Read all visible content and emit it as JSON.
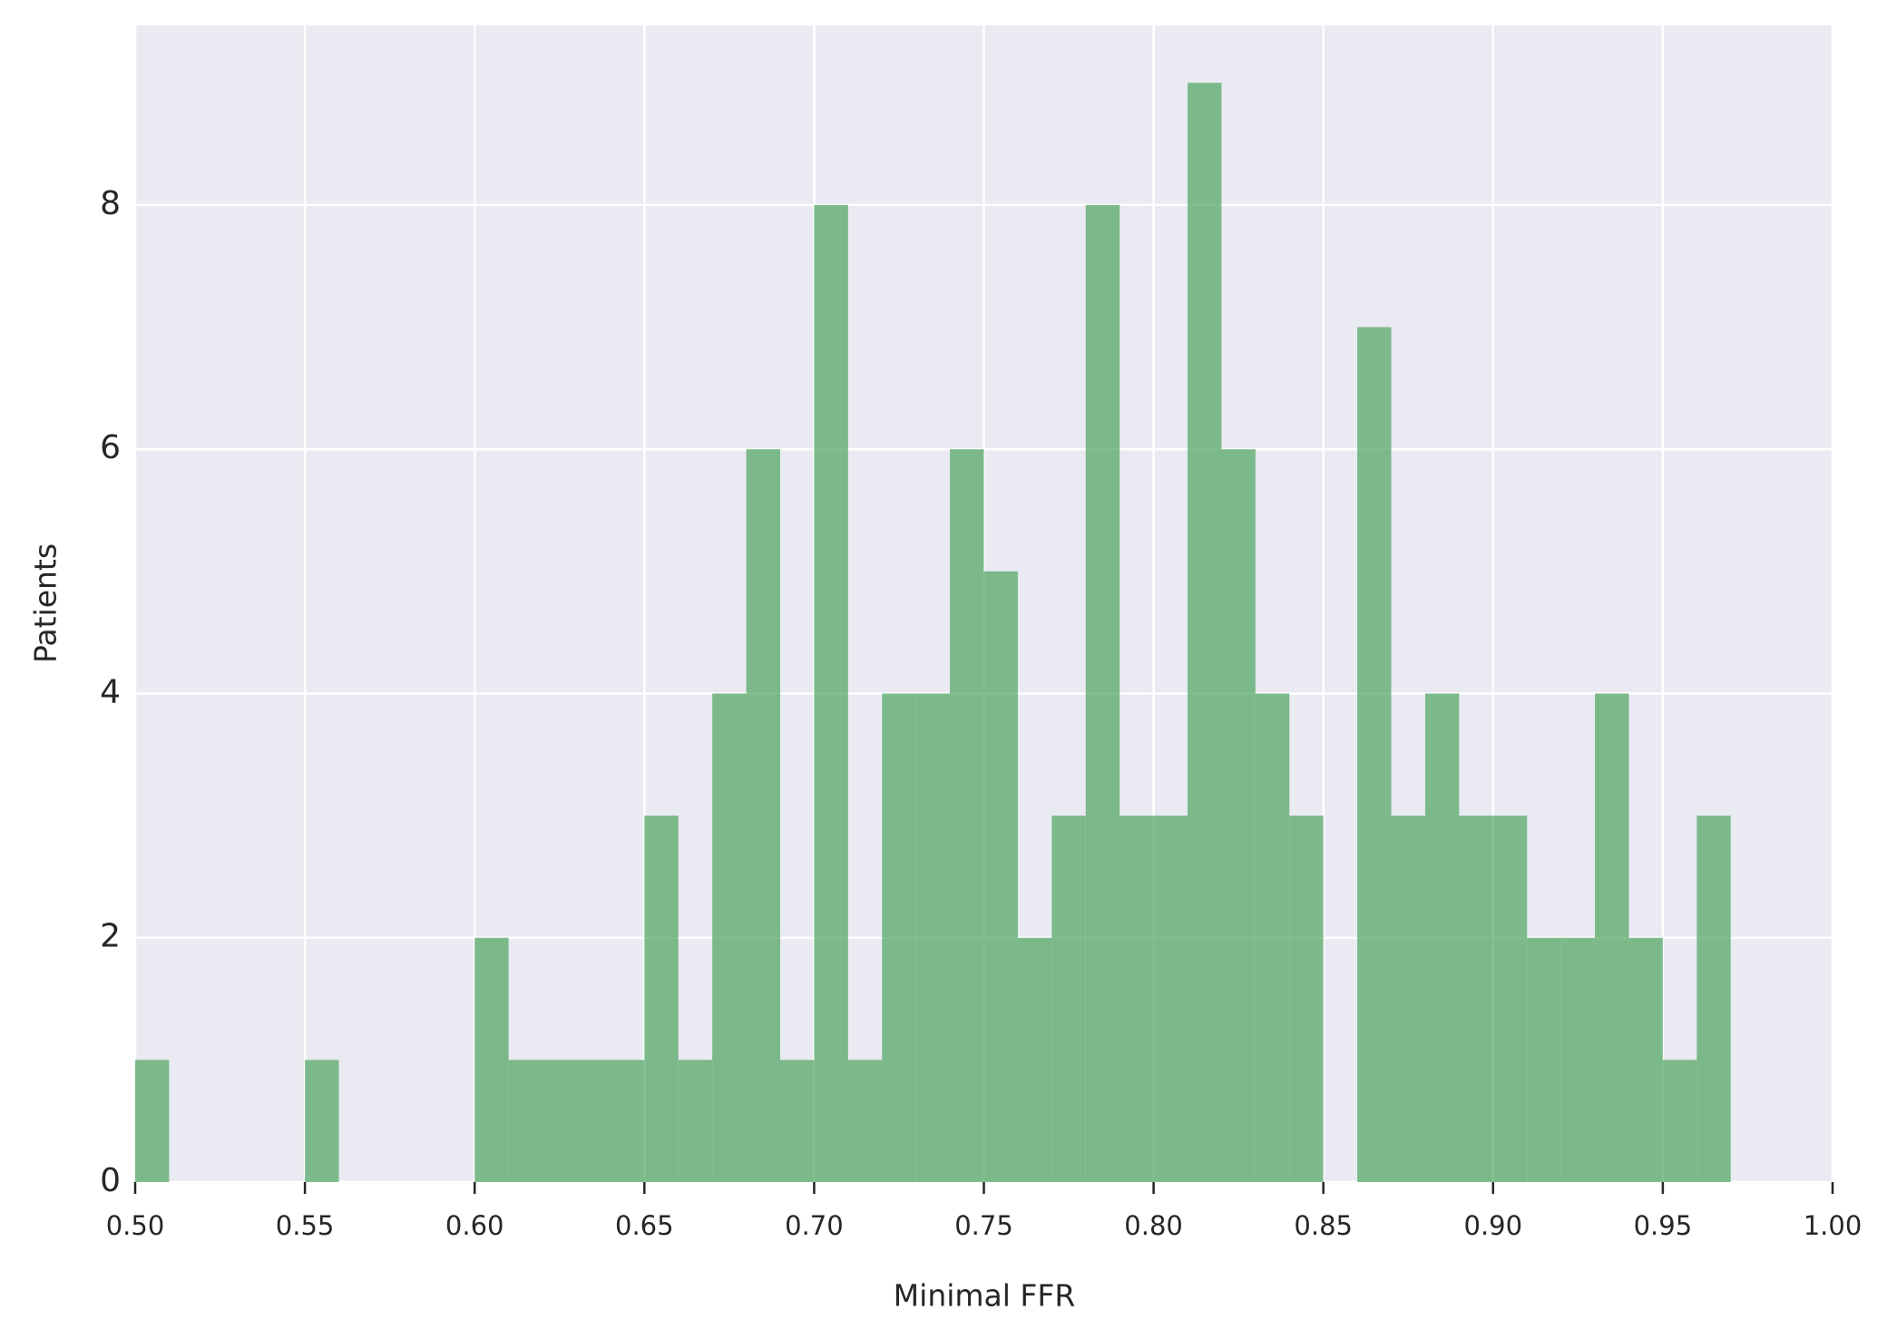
{
  "chart_data": {
    "type": "histogram",
    "xlabel": "Minimal FFR",
    "ylabel": "Patients",
    "bins": [
      0.5,
      0.51,
      0.52,
      0.53,
      0.54,
      0.55,
      0.56,
      0.57,
      0.58,
      0.59,
      0.6,
      0.61,
      0.62,
      0.63,
      0.64,
      0.65,
      0.66,
      0.67,
      0.68,
      0.69,
      0.7,
      0.71,
      0.72,
      0.73,
      0.74,
      0.75,
      0.76,
      0.77,
      0.78,
      0.79,
      0.8,
      0.81,
      0.82,
      0.83,
      0.84,
      0.85,
      0.86,
      0.87,
      0.88,
      0.89,
      0.9,
      0.91,
      0.92,
      0.93,
      0.94,
      0.95,
      0.96,
      0.97
    ],
    "counts": [
      1,
      0,
      0,
      0,
      0,
      1,
      0,
      0,
      0,
      0,
      2,
      1,
      1,
      1,
      1,
      3,
      1,
      4,
      6,
      1,
      8,
      1,
      4,
      4,
      6,
      5,
      2,
      3,
      8,
      3,
      3,
      9,
      6,
      4,
      3,
      0,
      7,
      3,
      4,
      3,
      3,
      2,
      2,
      4,
      2,
      1,
      3
    ],
    "color": "#55a868",
    "xlim": [
      0.5,
      1.0
    ],
    "xticks": [
      {
        "value": 0.5,
        "label": "0.50"
      },
      {
        "value": 0.55,
        "label": "0.55"
      },
      {
        "value": 0.6,
        "label": "0.60"
      },
      {
        "value": 0.65,
        "label": "0.65"
      },
      {
        "value": 0.7,
        "label": "0.70"
      },
      {
        "value": 0.75,
        "label": "0.75"
      },
      {
        "value": 0.8,
        "label": "0.80"
      },
      {
        "value": 0.85,
        "label": "0.85"
      },
      {
        "value": 0.9,
        "label": "0.90"
      },
      {
        "value": 0.95,
        "label": "0.95"
      },
      {
        "value": 1.0,
        "label": "1.00"
      }
    ],
    "ylim": [
      0,
      9.47
    ],
    "yticks": [
      0,
      2,
      4,
      6,
      8
    ],
    "grid": true
  }
}
